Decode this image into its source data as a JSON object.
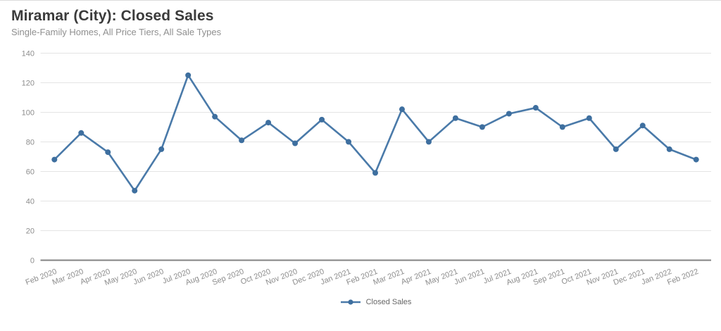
{
  "header": {
    "title": "Miramar (City): Closed Sales",
    "subtitle": "Single-Family Homes, All Price Tiers, All Sale Types"
  },
  "legend": {
    "label": "Closed Sales"
  },
  "colors": {
    "line": "#4a7aa9",
    "marker": "#3e6f9f",
    "grid": "#e4e4e4",
    "axis_baseline": "#828282",
    "tick_text": "#8d8d8d",
    "title_text": "#3b3b3b",
    "subtitle_text": "#8f8f8f",
    "legend_text": "#666666"
  },
  "chart_data": {
    "type": "line",
    "title": "Miramar (City): Closed Sales",
    "subtitle": "Single-Family Homes, All Price Tiers, All Sale Types",
    "categories": [
      "Feb 2020",
      "Mar 2020",
      "Apr 2020",
      "May 2020",
      "Jun 2020",
      "Jul 2020",
      "Aug 2020",
      "Sep 2020",
      "Oct 2020",
      "Nov 2020",
      "Dec 2020",
      "Jan 2021",
      "Feb 2021",
      "Mar 2021",
      "Apr 2021",
      "May 2021",
      "Jun 2021",
      "Jul 2021",
      "Aug 2021",
      "Sep 2021",
      "Oct 2021",
      "Nov 2021",
      "Dec 2021",
      "Jan 2022",
      "Feb 2022"
    ],
    "series": [
      {
        "name": "Closed Sales",
        "values": [
          68,
          86,
          73,
          47,
          75,
          125,
          97,
          81,
          93,
          79,
          95,
          80,
          59,
          102,
          80,
          96,
          90,
          99,
          103,
          90,
          96,
          75,
          91,
          75,
          68
        ]
      }
    ],
    "ylim": [
      0,
      140
    ],
    "yticks": [
      0,
      20,
      40,
      60,
      80,
      100,
      120,
      140
    ],
    "xlabel": "",
    "ylabel": "",
    "grid": "horizontal",
    "legend_position": "bottom",
    "x_label_rotation": -21
  }
}
